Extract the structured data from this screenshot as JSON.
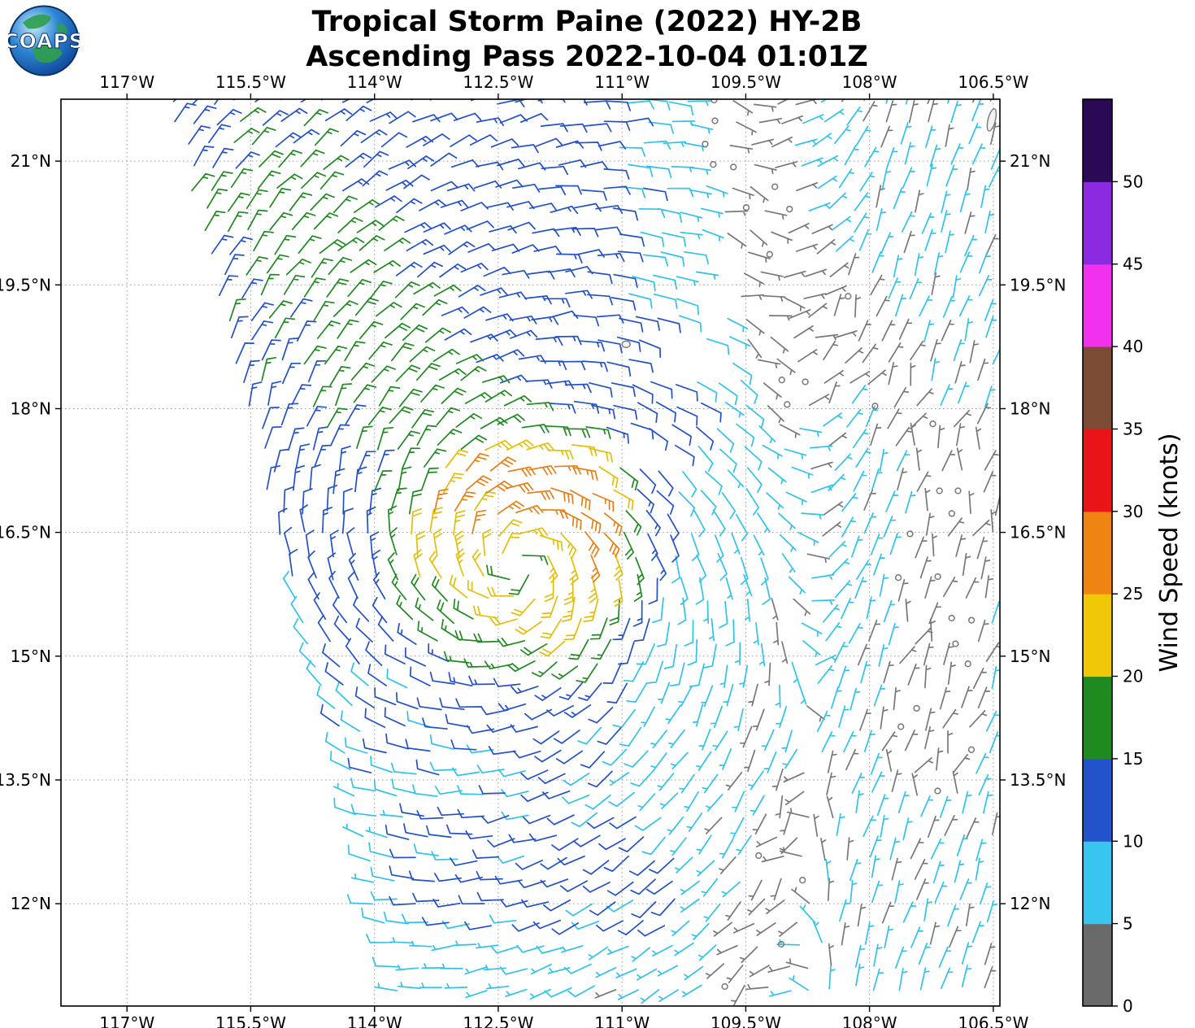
{
  "header": {
    "title_line1": "Tropical Storm Paine (2022) HY-2B",
    "title_line2": "Ascending Pass 2022-10-04 01:01Z",
    "logo_text": "COAPS"
  },
  "chart_data": {
    "type": "wind_barb_map",
    "title": "Tropical Storm Paine (2022) HY-2B",
    "subtitle": "Ascending Pass 2022-10-04 01:01Z",
    "lon_range": [
      -117.8,
      -106.42
    ],
    "lat_range": [
      10.76,
      21.75
    ],
    "x_ticks": [
      {
        "lon": -117,
        "label": "117°W"
      },
      {
        "lon": -115.5,
        "label": "115.5°W"
      },
      {
        "lon": -114,
        "label": "114°W"
      },
      {
        "lon": -112.5,
        "label": "112.5°W"
      },
      {
        "lon": -111,
        "label": "111°W"
      },
      {
        "lon": -109.5,
        "label": "109.5°W"
      },
      {
        "lon": -108,
        "label": "108°W"
      },
      {
        "lon": -106.5,
        "label": "106.5°W"
      }
    ],
    "y_ticks": [
      {
        "lat": 21,
        "label": "21°N"
      },
      {
        "lat": 19.5,
        "label": "19.5°N"
      },
      {
        "lat": 18,
        "label": "18°N"
      },
      {
        "lat": 16.5,
        "label": "16.5°N"
      },
      {
        "lat": 15,
        "label": "15°N"
      },
      {
        "lat": 13.5,
        "label": "13.5°N"
      },
      {
        "lat": 12,
        "label": "12°N"
      }
    ],
    "colorbar": {
      "label": "Wind Speed (knots)",
      "ticks": [
        0,
        5,
        10,
        15,
        20,
        25,
        30,
        35,
        40,
        45,
        50
      ],
      "vmax": 55,
      "segment_colors": [
        "#6a6a6a",
        "#38c6f0",
        "#2253cb",
        "#1f8a1f",
        "#f0c808",
        "#ef8412",
        "#e81417",
        "#7b4b33",
        "#f231ee",
        "#8a2be2",
        "#2a0a55"
      ]
    },
    "barb_colors": [
      "#787878",
      "#2fc3ec",
      "#2251c9",
      "#1f8a1f",
      "#e4be07",
      "#e87f12",
      "#e81417",
      "#7b4b33",
      "#f231ee",
      "#8a2be2",
      "#2a0a55"
    ],
    "storm": {
      "name": "Tropical Storm Paine",
      "center": [
        -112.25,
        16.1
      ],
      "max_wind_kt": 29.9,
      "radius_max_wind_deg": 1.0
    },
    "islands": [
      {
        "name": "socorro-island",
        "lon": -110.95,
        "lat": 18.78,
        "rx": 5,
        "ry": 4,
        "rot": 0
      },
      {
        "name": "islas-marias",
        "lon": -106.52,
        "lat": 21.5,
        "rx": 4.5,
        "ry": 14,
        "rot": 14
      }
    ],
    "model": {
      "grid_step": 0.262,
      "pos_jitter": 0.07,
      "speed_jitter": 2.8,
      "swath_left_lon": -116.45,
      "edge_slope": 0.259,
      "asymmetry": 0.28,
      "asym_phase": 0.3,
      "vmax_cap": 29.9,
      "east_fade_start": -111.3,
      "east_fade_scale": 2.6,
      "east_fade_min": 0.4,
      "green_band": [
        -115.3,
        20.4,
        -112.8,
        17.3,
        17.8,
        3.0
      ],
      "north_bg": [
        11.5,
        17.5,
        1.5
      ],
      "south_blue": [
        -113.6,
        -110.3,
        11.6,
        13.3,
        10.8
      ],
      "floor_speed": 6.0,
      "calm_bands": [
        [
          -109.55,
          21.6,
          -108.95,
          18.3,
          0.55
        ],
        [
          -106.85,
          17.4,
          -107.35,
          13.7,
          0.6
        ],
        [
          -108.75,
          13.3,
          -109.45,
          11.2,
          0.45
        ],
        [
          -108.3,
          19.3,
          -107.6,
          17.9,
          0.4
        ]
      ],
      "calm_speed": 3.4,
      "inflow": 0.25,
      "east_dir": [
        -109.6,
        1.7,
        -0.3,
        -0.95
      ],
      "dir_jitter": 0.32,
      "dir_jitter_gray": 1.1,
      "staff_len": 27,
      "gaps": [
        [
          -110.32,
          18.62,
          0.45,
          0.32
        ],
        [
          -110.85,
          17.5,
          0.3,
          0.22
        ],
        [
          -109.87,
          19.5,
          0.24,
          0.45
        ]
      ]
    }
  }
}
